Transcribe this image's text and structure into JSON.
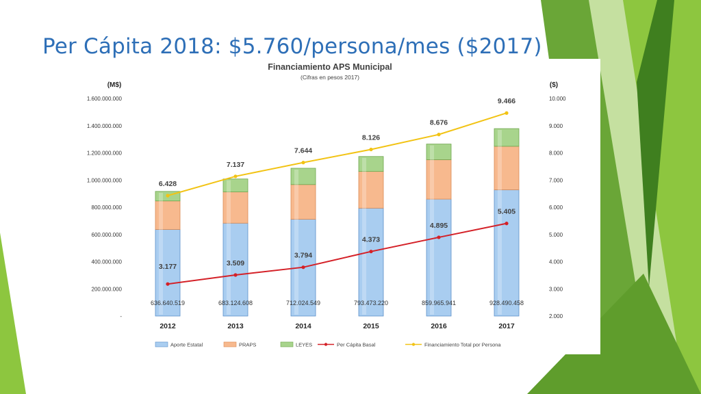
{
  "slide": {
    "title": "Per Cápita 2018: $5.760/persona/mes ($2017)"
  },
  "colors": {
    "title": "#2e6fb7",
    "green_dark": "#3f7f1f",
    "green_mid": "#6aa637",
    "green_light": "#8dc63f",
    "green_pale": "#c5e0a0",
    "aporte": "#a9cdf0",
    "praps": "#f7b98e",
    "leyes": "#a8d48c",
    "per_capita_line": "#d42027",
    "total_line": "#f2c314"
  },
  "chart_data": {
    "type": "bar",
    "title": "Financiamiento APS Municipal",
    "subtitle": "(Cifras en pesos 2017)",
    "y_left_unit": "(M$)",
    "y_right_unit": "($)",
    "categories": [
      "2012",
      "2013",
      "2014",
      "2015",
      "2016",
      "2017"
    ],
    "ylim_left": [
      0,
      1600000000
    ],
    "ylim_right": [
      2000,
      10000
    ],
    "y_left_ticks": [
      "-",
      "200.000.000",
      "400.000.000",
      "600.000.000",
      "800.000.000",
      "1.000.000.000",
      "1.200.000.000",
      "1.400.000.000",
      "1.600.000.000"
    ],
    "y_right_ticks": [
      "2.000",
      "3.000",
      "4.000",
      "5.000",
      "6.000",
      "7.000",
      "8.000",
      "9.000",
      "10.000"
    ],
    "bar_series": [
      {
        "name": "Aporte Estatal",
        "values": [
          636640519,
          683124608,
          712024549,
          793473220,
          859965941,
          928490458
        ],
        "labels": [
          "636.640.519",
          "683.124.608",
          "712.024.549",
          "793.473.220",
          "859.965.941",
          "928.490.458"
        ]
      },
      {
        "name": "PRAPS",
        "values": [
          210000000,
          230000000,
          255000000,
          270000000,
          290000000,
          320000000
        ]
      },
      {
        "name": "LEYES",
        "values": [
          70000000,
          95000000,
          120000000,
          110000000,
          115000000,
          130000000
        ]
      }
    ],
    "line_series": [
      {
        "name": "Per Cápita Basal",
        "axis": "right",
        "values": [
          3177,
          3509,
          3794,
          4373,
          4895,
          5405
        ],
        "labels": [
          "3.177",
          "3.509",
          "3.794",
          "4.373",
          "4.895",
          "5.405"
        ]
      },
      {
        "name": "Financiamiento Total por Persona",
        "axis": "right",
        "values": [
          6428,
          7137,
          7644,
          8126,
          8676,
          9466
        ],
        "labels": [
          "6.428",
          "7.137",
          "7.644",
          "8.126",
          "8.676",
          "9.466"
        ]
      }
    ],
    "legend": [
      "Aporte Estatal",
      "PRAPS",
      "LEYES",
      "Per Cápita Basal",
      "Financiamiento Total por Persona"
    ],
    "legend_position": "bottom",
    "grid": false
  }
}
